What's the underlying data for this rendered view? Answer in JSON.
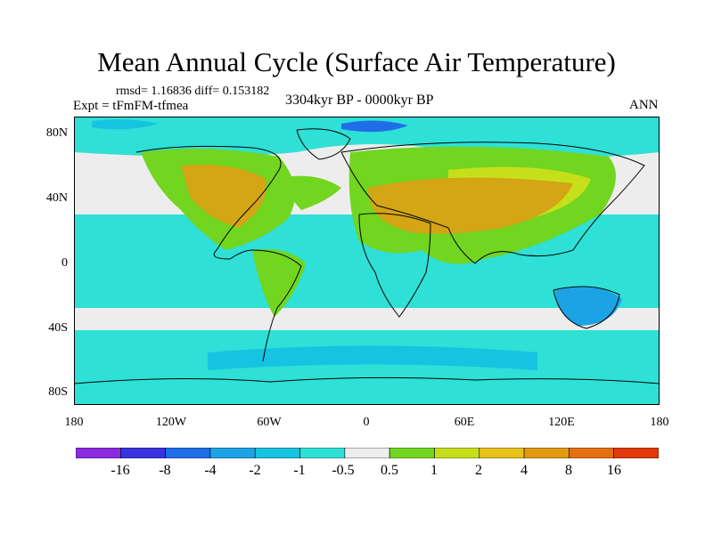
{
  "title": "Mean Annual Cycle (Surface Air Temperature)",
  "stats": "rmsd= 1.16836 diff= 0.153182",
  "experiment": "Expt = tFmFM-tfmea",
  "period": "3304kyr BP - 0000kyr BP",
  "season": "ANN",
  "lat_labels": [
    "80N",
    "40N",
    "0",
    "40S",
    "80S"
  ],
  "lon_labels": [
    "180",
    "120W",
    "60W",
    "0",
    "60E",
    "120E",
    "180"
  ],
  "colorbar": {
    "colors": [
      "#8a2be2",
      "#3a33e0",
      "#1f6ee8",
      "#1ca3e6",
      "#16c3e0",
      "#2ee0d6",
      "#ededed",
      "#72d520",
      "#c5e01a",
      "#e8c11a",
      "#e39a0e",
      "#e67010",
      "#e2380c"
    ],
    "labels": [
      "-16",
      "-8",
      "-4",
      "-2",
      "-1",
      "-0.5",
      "0.5",
      "1",
      "2",
      "4",
      "8",
      "16"
    ]
  },
  "map_colors": {
    "ocean_neg": "#2ee0d6",
    "ocean_neg_strong": "#16c3e0",
    "cold_pole": "#1f6ee8",
    "neutral": "#ededed",
    "warm": "#72d520",
    "warmer": "#c5e01a",
    "hot": "#e8c11a",
    "hotter": "#d4a514"
  }
}
